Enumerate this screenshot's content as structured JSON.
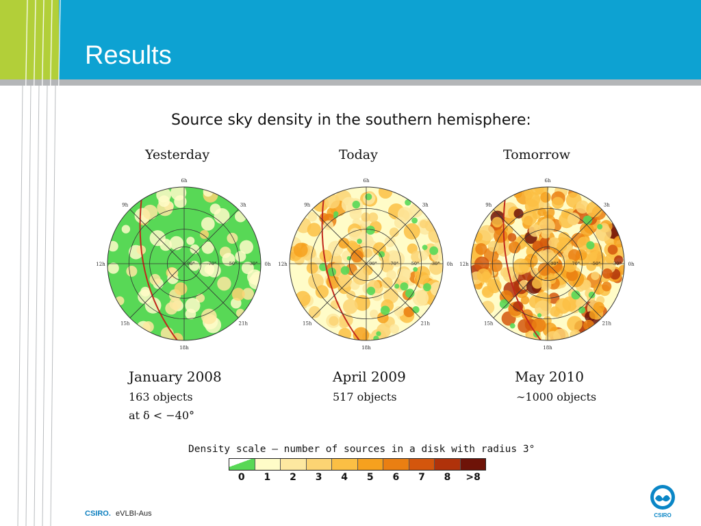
{
  "slide": {
    "title": "Results",
    "subtitle": "Source sky density in the southern hemisphere:",
    "panels": [
      {
        "label": "Yesterday",
        "date": "January 2008",
        "count": "163 objects",
        "note": "at δ < −40°"
      },
      {
        "label": "Today",
        "date": "April 2009",
        "count": "517 objects"
      },
      {
        "label": "Tomorrow",
        "date": "May 2010",
        "count": "∼1000 objects"
      }
    ],
    "hour_labels": [
      "6h",
      "3h",
      "0h",
      "21h",
      "18h",
      "15h",
      "12h",
      "9h"
    ],
    "dec_labels": [
      "-90°",
      "-70°",
      "-50°",
      "-30°"
    ],
    "density_scale": {
      "caption": "Density scale – number of sources in a disk with radius 3°",
      "labels": [
        "0",
        "1",
        "2",
        "3",
        "4",
        "5",
        "6",
        "7",
        "8",
        ">8"
      ],
      "colors": [
        "#58d856",
        "#fffcc8",
        "#fde8a0",
        "#fcd473",
        "#fbbf44",
        "#f6a11e",
        "#ea7f12",
        "#d4560c",
        "#b0320a",
        "#6e1308"
      ]
    }
  },
  "footer": {
    "brand": "CSIRO.",
    "project": "eVLBI-Aus",
    "logo_text": "CSIRO"
  },
  "chart_data": {
    "type": "heatmap",
    "title": "Source sky density in the southern hemisphere:",
    "maps": [
      {
        "name": "January 2008",
        "objects": 163,
        "declination_cut": "δ < −40°"
      },
      {
        "name": "April 2009",
        "objects": 517
      },
      {
        "name": "May 2010",
        "objects": 1000
      }
    ],
    "colorbar": {
      "label": "Density scale – number of sources in a disk with radius 3°",
      "levels": [
        "0",
        "1",
        "2",
        "3",
        "4",
        "5",
        "6",
        "7",
        "8",
        ">8"
      ]
    },
    "projection": "polar, south celestial pole centered",
    "ra_labels": [
      "6h",
      "3h",
      "0h",
      "21h",
      "18h",
      "15h",
      "12h",
      "9h"
    ],
    "dec_labels": [
      "-90°",
      "-70°",
      "-50°",
      "-30°"
    ]
  }
}
